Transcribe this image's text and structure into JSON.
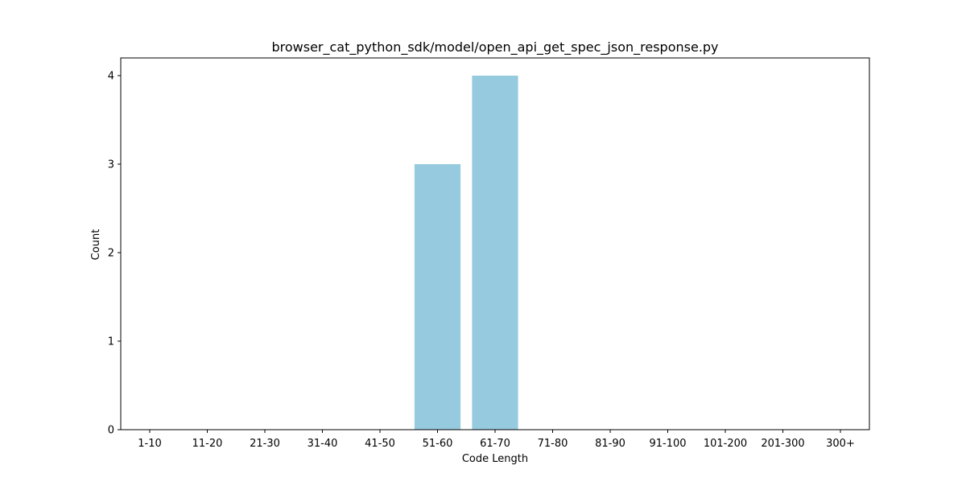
{
  "chart_data": {
    "type": "bar",
    "title": "browser_cat_python_sdk/model/open_api_get_spec_json_response.py",
    "xlabel": "Code Length",
    "ylabel": "Count",
    "categories": [
      "1-10",
      "11-20",
      "21-30",
      "31-40",
      "41-50",
      "51-60",
      "61-70",
      "71-80",
      "81-90",
      "91-100",
      "101-200",
      "201-300",
      "300+"
    ],
    "values": [
      0,
      0,
      0,
      0,
      0,
      3,
      4,
      0,
      0,
      0,
      0,
      0,
      0
    ],
    "ylim": [
      0,
      4.2
    ],
    "yticks": [
      "0",
      "1",
      "2",
      "3",
      "4"
    ],
    "bar_color": "#96cade",
    "grid": false,
    "legend": "none"
  }
}
